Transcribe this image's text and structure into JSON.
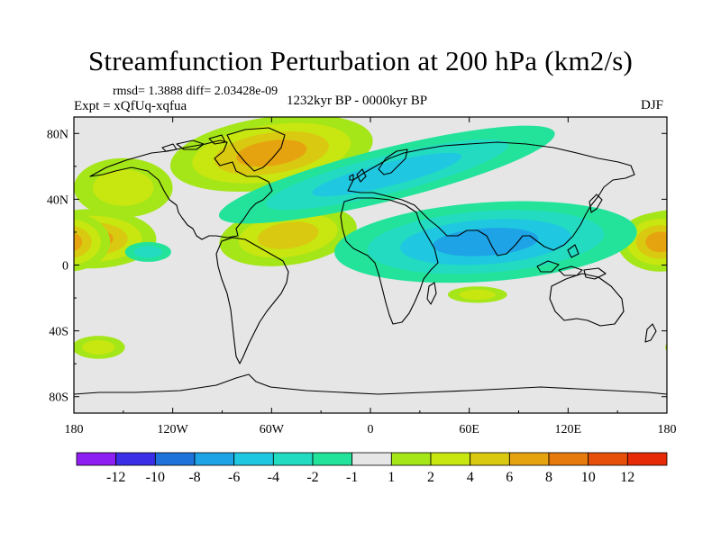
{
  "title": "Streamfunction Perturbation at 200 hPa (km2/s)",
  "stats": "rmsd= 1.3888 diff= 2.03428e-09",
  "experiment": "Expt = xQfUq-xqfua",
  "period": "1232kyr BP - 0000kyr BP",
  "season": "DJF",
  "axes": {
    "lat_ticks": [
      "80N",
      "40N",
      "0",
      "40S",
      "80S"
    ],
    "lon_ticks": [
      "180",
      "120W",
      "60W",
      "0",
      "60E",
      "120E",
      "180"
    ]
  },
  "colorbar": {
    "colors": [
      "#8e1ff2",
      "#3a2ee6",
      "#1f72d9",
      "#1ea3e6",
      "#1fc8e0",
      "#22dbc0",
      "#23e39a",
      "#e6e6e6",
      "#a5e619",
      "#c8e610",
      "#d9c910",
      "#e6a310",
      "#e67a0c",
      "#e64f0a",
      "#e62a08"
    ],
    "labels": [
      "-12",
      "-10",
      "-8",
      "-6",
      "-4",
      "-2",
      "-1",
      "1",
      "2",
      "4",
      "6",
      "8",
      "10",
      "12"
    ]
  },
  "chart_data": {
    "type": "contour-map",
    "variable": "Streamfunction Perturbation at 200 hPa",
    "units": "km2/s",
    "season": "DJF",
    "levels": [
      -12,
      -10,
      -8,
      -6,
      -4,
      -2,
      -1,
      1,
      2,
      4,
      6,
      8,
      10,
      12
    ],
    "lon_range": [
      -180,
      180
    ],
    "lat_range": [
      -90,
      90
    ],
    "features": [
      {
        "name": "positive-north-atlantic-greenland",
        "lon": -60,
        "lat": 68,
        "peak": 6
      },
      {
        "name": "positive-north-pacific",
        "lon": -150,
        "lat": 47,
        "peak": 2
      },
      {
        "name": "positive-tropical-central-pacific",
        "lon": -170,
        "lat": 16,
        "peak": 6
      },
      {
        "name": "positive-tropical-atlantic",
        "lon": -50,
        "lat": 18,
        "peak": 4
      },
      {
        "name": "positive-western-pacific",
        "lon": 170,
        "lat": 14,
        "peak": 6
      },
      {
        "name": "positive-south-pacific",
        "lon": -165,
        "lat": -50,
        "peak": 2
      },
      {
        "name": "positive-indian-ocean",
        "lon": 60,
        "lat": -15,
        "peak": 2
      },
      {
        "name": "negative-north-atlantic-europe",
        "lon": 20,
        "lat": 55,
        "peak": -4
      },
      {
        "name": "negative-south-asia",
        "lon": 75,
        "lat": 15,
        "peak": -6
      },
      {
        "name": "negative-eastern-tropical-pacific",
        "lon": -130,
        "lat": 5,
        "peak": -2
      }
    ]
  }
}
